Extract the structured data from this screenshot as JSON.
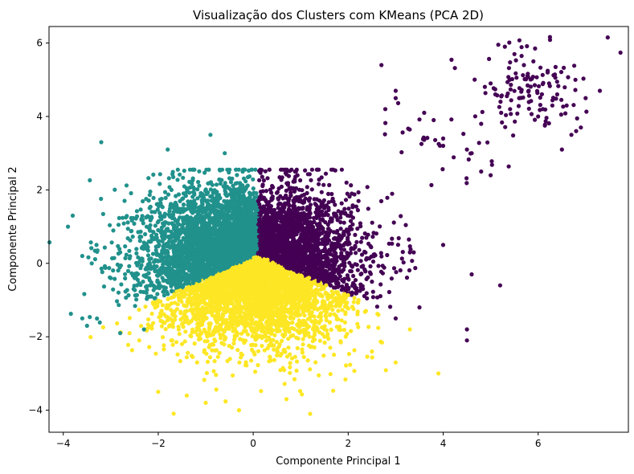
{
  "chart_data": {
    "type": "scatter",
    "title": "Visualização dos Clusters com KMeans (PCA 2D)",
    "xlabel": "Componente Principal 1",
    "ylabel": "Componente Principal 2",
    "xlim": [
      -4.3,
      7.9
    ],
    "ylim": [
      -4.6,
      6.45
    ],
    "xticks": [
      -4,
      -2,
      0,
      2,
      4,
      6
    ],
    "yticks": [
      -4,
      -2,
      0,
      2,
      4,
      6
    ],
    "xtick_labels": [
      "−4",
      "−2",
      "0",
      "2",
      "4",
      "6"
    ],
    "ytick_labels": [
      "−4",
      "−2",
      "0",
      "2",
      "4",
      "6"
    ],
    "grid": false,
    "legend": "none",
    "series": [
      {
        "cluster": 0,
        "color": "#440154",
        "region": "right (x > 0.1, upper-right wedge)",
        "sample_points": [
          [
            0.5,
            1.0
          ],
          [
            1.2,
            0.5
          ],
          [
            2.0,
            0.2
          ],
          [
            1.5,
            1.5
          ],
          [
            2.5,
            -0.5
          ],
          [
            3.3,
            0.3
          ],
          [
            4.0,
            0.5
          ],
          [
            4.6,
            -0.3
          ],
          [
            5.2,
            -0.6
          ],
          [
            3.5,
            -1.2
          ],
          [
            4.5,
            -1.8
          ],
          [
            4.5,
            -2.1
          ],
          [
            3.0,
            -1.5
          ],
          [
            0.9,
            2.5
          ],
          [
            0.7,
            2.5
          ],
          [
            2.7,
            5.4
          ],
          [
            3.0,
            4.7
          ],
          [
            3.0,
            4.5
          ],
          [
            3.6,
            4.1
          ],
          [
            3.8,
            3.9
          ],
          [
            4.0,
            3.4
          ],
          [
            4.0,
            3.2
          ],
          [
            4.6,
            3.0
          ],
          [
            4.8,
            2.5
          ],
          [
            5.0,
            2.4
          ],
          [
            4.5,
            3.1
          ],
          [
            4.8,
            3.8
          ],
          [
            5.0,
            4.9
          ],
          [
            5.1,
            4.6
          ],
          [
            5.3,
            5.9
          ],
          [
            5.4,
            5.0
          ],
          [
            5.5,
            5.7
          ],
          [
            5.6,
            4.5
          ],
          [
            5.7,
            5.4
          ],
          [
            5.8,
            4.7
          ],
          [
            5.9,
            5.5
          ],
          [
            6.0,
            4.0
          ],
          [
            6.1,
            4.2
          ],
          [
            6.2,
            5.2
          ],
          [
            6.3,
            4.3
          ],
          [
            6.4,
            4.6
          ],
          [
            6.5,
            3.1
          ],
          [
            6.6,
            4.3
          ],
          [
            6.7,
            3.5
          ],
          [
            6.8,
            3.6
          ],
          [
            6.9,
            3.7
          ],
          [
            7.0,
            4.5
          ],
          [
            7.3,
            4.7
          ]
        ]
      },
      {
        "cluster": 1,
        "color": "#21918c",
        "region": "left (x < 0.1, upper-left wedge)",
        "sample_points": [
          [
            -0.5,
            0.5
          ],
          [
            -1.2,
            1.0
          ],
          [
            -2.0,
            0.6
          ],
          [
            -2.8,
            0.3
          ],
          [
            -3.3,
            0.5
          ],
          [
            -3.6,
            0.2
          ],
          [
            -3.9,
            1.0
          ],
          [
            -3.8,
            1.3
          ],
          [
            -3.2,
            3.3
          ],
          [
            -1.8,
            3.1
          ],
          [
            -0.9,
            3.5
          ],
          [
            -0.6,
            3.0
          ],
          [
            -3.4,
            0.0
          ],
          [
            -3.0,
            -0.4
          ],
          [
            -2.3,
            -1.8
          ],
          [
            -3.6,
            -1.5
          ],
          [
            -3.5,
            -1.7
          ],
          [
            -2.8,
            -1.9
          ],
          [
            -0.7,
            -0.2
          ]
        ]
      },
      {
        "cluster": 2,
        "color": "#fde725",
        "region": "bottom (triangular region below y ≈ 0.2)",
        "sample_points": [
          [
            0.0,
            -1.0
          ],
          [
            -0.8,
            -1.5
          ],
          [
            0.8,
            -1.3
          ],
          [
            1.5,
            -2.0
          ],
          [
            -1.5,
            -2.2
          ],
          [
            2.5,
            -2.4
          ],
          [
            3.0,
            -2.7
          ],
          [
            -2.0,
            -3.5
          ],
          [
            -1.4,
            -3.6
          ],
          [
            -1.0,
            -3.8
          ],
          [
            -0.3,
            -4.0
          ],
          [
            1.2,
            -4.1
          ],
          [
            0.7,
            -3.7
          ],
          [
            3.9,
            -3.0
          ],
          [
            3.3,
            -1.8
          ],
          [
            -2.4,
            -2.1
          ],
          [
            0.3,
            0.1
          ]
        ]
      }
    ]
  }
}
